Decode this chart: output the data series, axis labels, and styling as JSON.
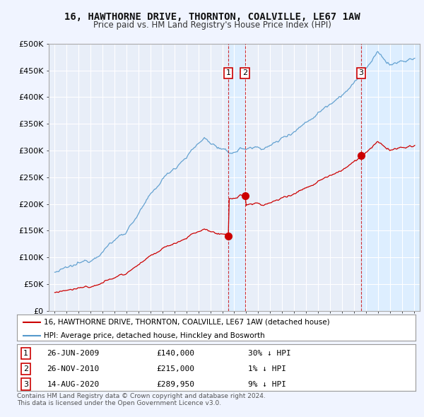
{
  "title": "16, HAWTHORNE DRIVE, THORNTON, COALVILLE, LE67 1AW",
  "subtitle": "Price paid vs. HM Land Registry's House Price Index (HPI)",
  "legend_property": "16, HAWTHORNE DRIVE, THORNTON, COALVILLE, LE67 1AW (detached house)",
  "legend_hpi": "HPI: Average price, detached house, Hinckley and Bosworth",
  "footer1": "Contains HM Land Registry data © Crown copyright and database right 2024.",
  "footer2": "This data is licensed under the Open Government Licence v3.0.",
  "transactions": [
    {
      "num": 1,
      "date": "26-JUN-2009",
      "price": "£140,000",
      "hpi_diff": "30% ↓ HPI",
      "year": 2009.5,
      "value": 140000
    },
    {
      "num": 2,
      "date": "26-NOV-2010",
      "price": "£215,000",
      "hpi_diff": "1% ↓ HPI",
      "year": 2010.9,
      "value": 215000
    },
    {
      "num": 3,
      "date": "14-AUG-2020",
      "price": "£289,950",
      "hpi_diff": "9% ↓ HPI",
      "year": 2020.6,
      "value": 289950
    }
  ],
  "property_color": "#cc0000",
  "hpi_color": "#5599cc",
  "shade_color": "#ddeeff",
  "background_color": "#f0f4ff",
  "plot_bg": "#e8eef8",
  "grid_color": "#d0d8e8",
  "ylim": [
    0,
    500000
  ],
  "xlim": [
    1994.5,
    2025.5
  ],
  "yticks": [
    0,
    50000,
    100000,
    150000,
    200000,
    250000,
    300000,
    350000,
    400000,
    450000,
    500000
  ],
  "ytick_labels": [
    "£0",
    "£50K",
    "£100K",
    "£150K",
    "£200K",
    "£250K",
    "£300K",
    "£350K",
    "£400K",
    "£450K",
    "£500K"
  ]
}
